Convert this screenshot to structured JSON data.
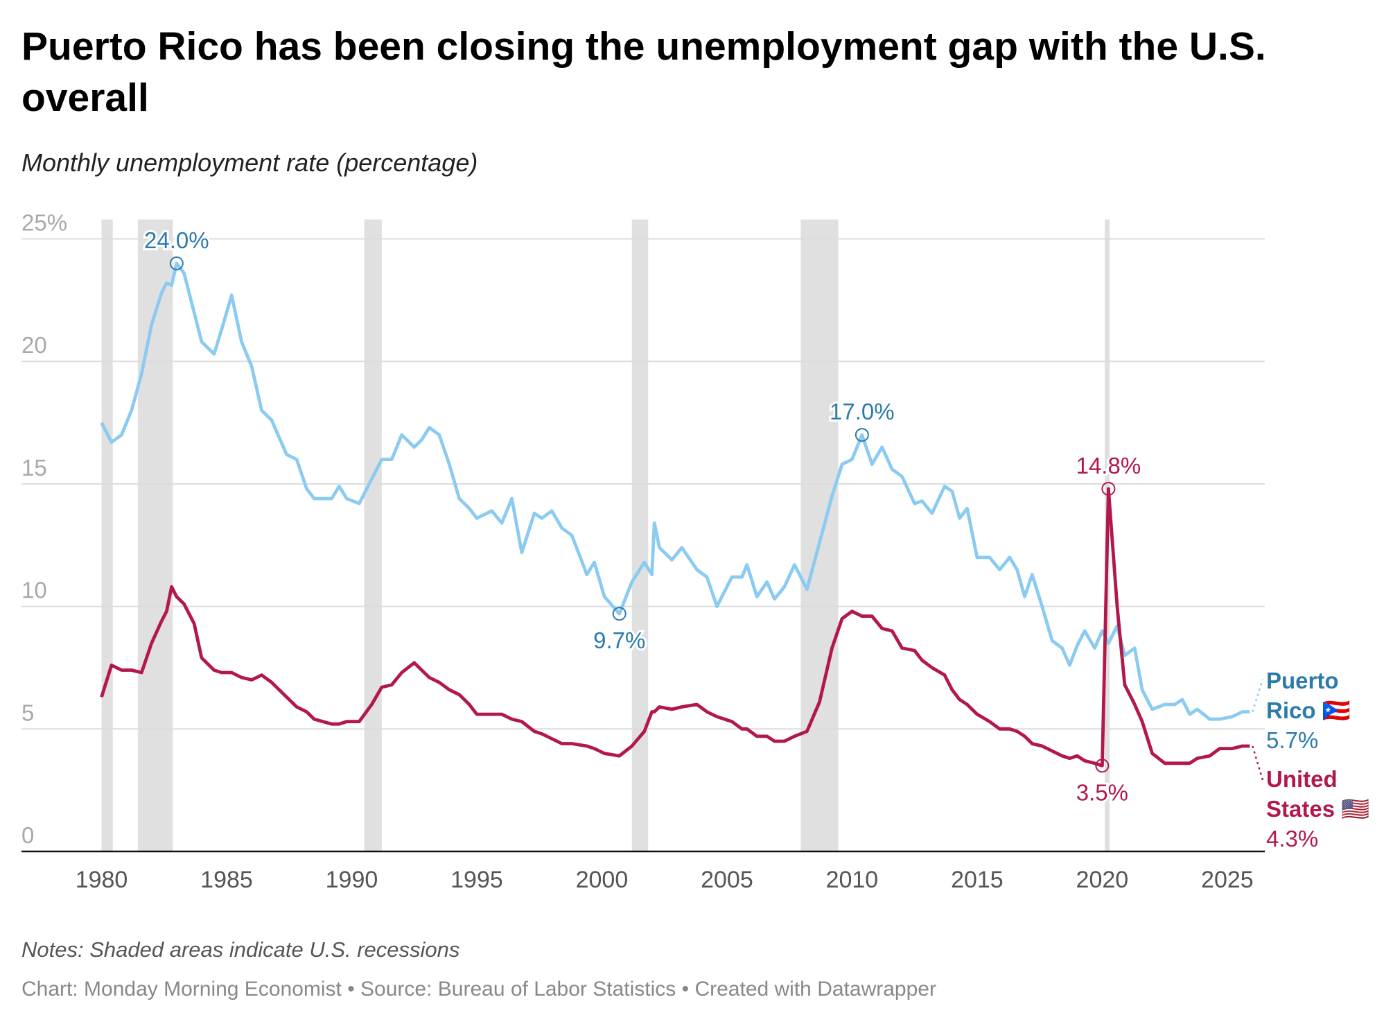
{
  "chart_data": {
    "type": "line",
    "title": "Puerto Rico has been closing the unemployment gap with the U.S. overall",
    "subtitle": "Monthly unemployment rate (percentage)",
    "notes": "Notes: Shaded areas indicate U.S. recessions",
    "footer": "Chart: Monday Morning Economist • Source: Bureau of Labor Statistics • Created with Datawrapper",
    "x": [
      1980.0,
      1980.4,
      1980.8,
      1981.2,
      1981.6,
      1982.0,
      1982.4,
      1982.6,
      1982.8,
      1983.0,
      1983.3,
      1983.7,
      1984.0,
      1984.5,
      1984.8,
      1985.2,
      1985.6,
      1986.0,
      1986.4,
      1986.8,
      1987.4,
      1987.8,
      1988.2,
      1988.5,
      1989.2,
      1989.5,
      1989.8,
      1990.3,
      1990.8,
      1991.2,
      1991.6,
      1992.0,
      1992.5,
      1992.8,
      1993.1,
      1993.5,
      1993.9,
      1994.3,
      1994.7,
      1995.0,
      1995.6,
      1996.0,
      1996.4,
      1996.8,
      1997.3,
      1997.6,
      1998.0,
      1998.4,
      1998.8,
      1999.4,
      1999.7,
      2000.1,
      2000.7,
      2001.2,
      2001.7,
      2002.0,
      2002.1,
      2002.3,
      2002.8,
      2003.2,
      2003.8,
      2004.2,
      2004.6,
      2005.2,
      2005.6,
      2005.8,
      2006.2,
      2006.6,
      2006.9,
      2007.3,
      2007.7,
      2008.2,
      2008.7,
      2009.2,
      2009.6,
      2010.0,
      2010.4,
      2010.8,
      2011.2,
      2011.6,
      2012.0,
      2012.5,
      2012.8,
      2013.2,
      2013.7,
      2014.0,
      2014.3,
      2014.6,
      2015.0,
      2015.5,
      2015.9,
      2016.3,
      2016.6,
      2016.9,
      2017.2,
      2017.6,
      2018.0,
      2018.4,
      2018.7,
      2019.0,
      2019.3,
      2019.7,
      2020.0,
      2020.25,
      2020.6,
      2020.9,
      2021.3,
      2021.6,
      2022.0,
      2022.5,
      2022.9,
      2023.2,
      2023.5,
      2023.8,
      2024.3,
      2024.7,
      2025.2,
      2025.6,
      2025.9
    ],
    "series": [
      {
        "name": "Puerto Rico 🇵🇷",
        "color": "#8ccbf1",
        "label_color": "#2c7bab",
        "values": [
          17.5,
          16.7,
          17.0,
          18.0,
          19.5,
          21.5,
          22.8,
          23.2,
          23.1,
          24.0,
          23.6,
          22.0,
          20.8,
          20.3,
          21.3,
          22.7,
          20.8,
          19.8,
          18.0,
          17.6,
          16.2,
          16.0,
          14.8,
          14.4,
          14.4,
          14.9,
          14.4,
          14.2,
          15.2,
          16.0,
          16.0,
          17.0,
          16.5,
          16.8,
          17.3,
          17.0,
          15.8,
          14.4,
          14.0,
          13.6,
          13.9,
          13.4,
          14.4,
          12.2,
          13.8,
          13.6,
          13.9,
          13.2,
          12.9,
          11.3,
          11.8,
          10.4,
          9.7,
          11.0,
          11.8,
          11.3,
          13.4,
          12.4,
          11.9,
          12.4,
          11.5,
          11.2,
          10.0,
          11.2,
          11.2,
          11.7,
          10.4,
          11.0,
          10.3,
          10.8,
          11.7,
          10.7,
          12.6,
          14.5,
          15.8,
          16.0,
          17.0,
          15.8,
          16.5,
          15.6,
          15.3,
          14.2,
          14.3,
          13.8,
          14.9,
          14.7,
          13.6,
          14.0,
          12.0,
          12.0,
          11.5,
          12.0,
          11.5,
          10.4,
          11.3,
          10.0,
          8.6,
          8.3,
          7.6,
          8.4,
          9.0,
          8.3,
          9.0,
          8.5,
          9.2,
          8.0,
          8.3,
          6.6,
          5.8,
          6.0,
          6.0,
          6.2,
          5.6,
          5.8,
          5.4,
          5.4,
          5.5,
          5.7,
          5.7
        ],
        "end_label": {
          "value": 5.7,
          "label": "5.7%"
        }
      },
      {
        "name": "United States 🇺🇸",
        "color": "#b3184a",
        "label_color": "#b3184a",
        "values": [
          6.3,
          7.6,
          7.4,
          7.4,
          7.3,
          8.5,
          9.4,
          9.8,
          10.8,
          10.4,
          10.1,
          9.3,
          7.9,
          7.4,
          7.3,
          7.3,
          7.1,
          7.0,
          7.2,
          6.9,
          6.3,
          5.9,
          5.7,
          5.4,
          5.2,
          5.2,
          5.3,
          5.3,
          6.0,
          6.7,
          6.8,
          7.3,
          7.7,
          7.4,
          7.1,
          6.9,
          6.6,
          6.4,
          6.0,
          5.6,
          5.6,
          5.6,
          5.4,
          5.3,
          4.9,
          4.8,
          4.6,
          4.4,
          4.4,
          4.3,
          4.2,
          4.0,
          3.9,
          4.3,
          4.9,
          5.7,
          5.7,
          5.9,
          5.8,
          5.9,
          6.0,
          5.7,
          5.5,
          5.3,
          5.0,
          5.0,
          4.7,
          4.7,
          4.5,
          4.5,
          4.7,
          4.9,
          6.1,
          8.3,
          9.5,
          9.8,
          9.6,
          9.6,
          9.1,
          9.0,
          8.3,
          8.2,
          7.8,
          7.5,
          7.2,
          6.6,
          6.2,
          6.0,
          5.6,
          5.3,
          5.0,
          5.0,
          4.9,
          4.7,
          4.4,
          4.3,
          4.1,
          3.9,
          3.8,
          3.9,
          3.7,
          3.6,
          3.5,
          14.8,
          10.0,
          6.8,
          6.0,
          5.3,
          4.0,
          3.6,
          3.6,
          3.6,
          3.6,
          3.8,
          3.9,
          4.2,
          4.2,
          4.3,
          4.3
        ],
        "end_label": {
          "value": 4.3,
          "label": "4.3%"
        }
      }
    ],
    "annotations": [
      {
        "x": 1983.0,
        "y": 24.0,
        "label": "24.0%",
        "position": "above",
        "color": "#2c7bab"
      },
      {
        "x": 2010.4,
        "y": 17.0,
        "label": "17.0%",
        "position": "above",
        "color": "#2c7bab"
      },
      {
        "x": 2000.7,
        "y": 9.7,
        "label": "9.7%",
        "position": "below",
        "color": "#2c7bab"
      },
      {
        "x": 2020.25,
        "y": 14.8,
        "label": "14.8%",
        "position": "above",
        "color": "#b3184a"
      },
      {
        "x": 2020.0,
        "y": 3.5,
        "label": "3.5%",
        "position": "below",
        "color": "#b3184a"
      }
    ],
    "recessions": [
      [
        1980.0,
        1980.45
      ],
      [
        1981.45,
        1982.85
      ],
      [
        1990.5,
        1991.2
      ],
      [
        2001.2,
        2001.85
      ],
      [
        2007.95,
        2009.45
      ],
      [
        2020.1,
        2020.3
      ]
    ],
    "recession_color": "#e0e0e0",
    "xlim": [
      1976.8,
      2026.5
    ],
    "xticks": [
      1980,
      1985,
      1990,
      1995,
      2000,
      2005,
      2010,
      2015,
      2020,
      2025
    ],
    "ylim": [
      0,
      25
    ],
    "yticks": [
      0,
      5,
      10,
      15,
      20,
      {
        "value": 25,
        "label": "25%"
      }
    ],
    "grid": true
  }
}
